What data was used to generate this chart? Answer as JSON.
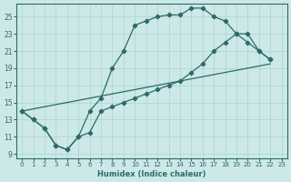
{
  "xlabel": "Humidex (Indice chaleur)",
  "bg_color": "#cce8e8",
  "line_color": "#2d6b65",
  "grid_color": "#aad4d0",
  "xlim": [
    -0.5,
    23.5
  ],
  "ylim": [
    8.5,
    26.5
  ],
  "xticks": [
    0,
    1,
    2,
    3,
    4,
    5,
    6,
    7,
    8,
    9,
    10,
    11,
    12,
    13,
    14,
    15,
    16,
    17,
    18,
    19,
    20,
    21,
    22,
    23
  ],
  "yticks": [
    9,
    11,
    13,
    15,
    17,
    19,
    21,
    23,
    25
  ],
  "curve1_x": [
    0,
    1,
    2,
    3,
    4,
    5,
    6,
    7,
    8,
    9,
    10,
    11,
    12,
    13,
    14,
    15,
    16,
    17,
    18,
    19,
    20,
    21,
    22
  ],
  "curve1_y": [
    14,
    13,
    12,
    10,
    9.5,
    11,
    14,
    15.5,
    19,
    21,
    24,
    24.5,
    25,
    25.2,
    25.2,
    26,
    26,
    25,
    24.5,
    23,
    22,
    21,
    20
  ],
  "curve2_x": [
    0,
    1,
    2,
    3,
    4,
    5,
    6,
    7,
    8,
    9,
    10,
    11,
    12,
    13,
    14,
    15,
    16,
    17,
    18,
    19,
    20,
    21,
    22
  ],
  "curve2_y": [
    14,
    13,
    12,
    10,
    9.5,
    11,
    11.5,
    14,
    14.5,
    15,
    15.5,
    16,
    16.5,
    17,
    17.5,
    18.5,
    19.5,
    21,
    22,
    23,
    23,
    21,
    20
  ],
  "curve3_x": [
    0,
    22
  ],
  "curve3_y": [
    14,
    19.5
  ]
}
